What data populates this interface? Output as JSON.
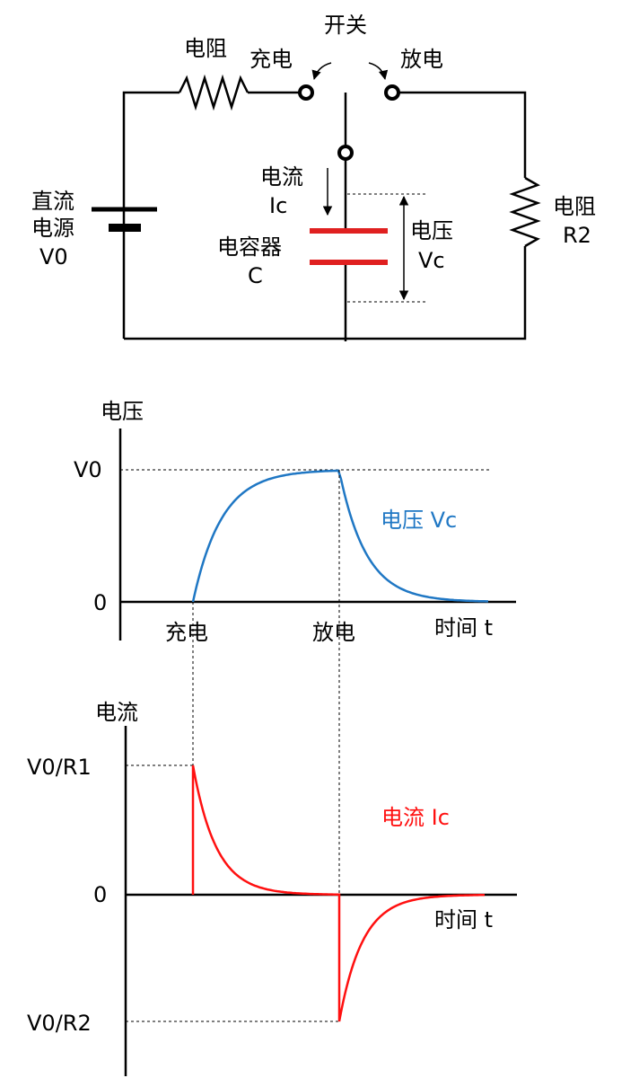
{
  "circuit": {
    "switch_label": "开关",
    "charge_label": "充电",
    "discharge_label": "放电",
    "resistor1_label": "电阻",
    "resistor2_label_1": "电阻",
    "resistor2_label_2": "R2",
    "source_label_1": "直流",
    "source_label_2": "电源",
    "source_label_3": "V0",
    "current_label_1": "电流",
    "current_label_2": "Ic",
    "capacitor_label_1": "电容器",
    "capacitor_label_2": "C",
    "voltage_label_1": "电压",
    "voltage_label_2": "Vc",
    "colors": {
      "capacitor": "#e02020",
      "wire": "#000000"
    }
  },
  "voltage_graph": {
    "y_title": "电压",
    "y_tick_top": "V0",
    "y_tick_zero": "0",
    "x_tick_charge": "充电",
    "x_tick_discharge": "放电",
    "x_title": "时间 t",
    "curve_label": "电压 Vc",
    "color": "#1f77c4"
  },
  "current_graph": {
    "y_title": "电流",
    "y_tick_top": "V0/R1",
    "y_tick_zero": "0",
    "y_tick_bottom": "V0/R2",
    "x_title": "时间 t",
    "curve_label": "电流 Ic",
    "color": "#ff1010"
  }
}
